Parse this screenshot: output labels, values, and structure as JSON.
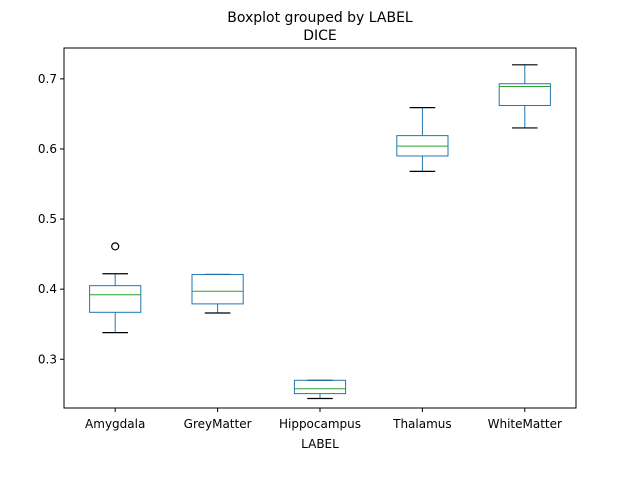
{
  "chart_data": {
    "type": "box",
    "title": "Boxplot grouped by LABEL",
    "subtitle": "DICE",
    "xlabel": "LABEL",
    "ylabel": "",
    "categories": [
      "Amygdala",
      "GreyMatter",
      "Hippocampus",
      "Thalamus",
      "WhiteMatter"
    ],
    "boxes": [
      {
        "category": "Amygdala",
        "whisker_low": 0.338,
        "q1": 0.367,
        "median": 0.392,
        "q3": 0.405,
        "whisker_high": 0.422,
        "outliers": [
          0.461
        ]
      },
      {
        "category": "GreyMatter",
        "whisker_low": 0.366,
        "q1": 0.379,
        "median": 0.397,
        "q3": 0.421,
        "whisker_high": 0.421,
        "outliers": []
      },
      {
        "category": "Hippocampus",
        "whisker_low": 0.244,
        "q1": 0.251,
        "median": 0.258,
        "q3": 0.27,
        "whisker_high": 0.27,
        "outliers": []
      },
      {
        "category": "Thalamus",
        "whisker_low": 0.568,
        "q1": 0.59,
        "median": 0.604,
        "q3": 0.619,
        "whisker_high": 0.659,
        "outliers": []
      },
      {
        "category": "WhiteMatter",
        "whisker_low": 0.63,
        "q1": 0.662,
        "median": 0.689,
        "q3": 0.693,
        "whisker_high": 0.72,
        "outliers": []
      }
    ],
    "yticks": [
      0.3,
      0.4,
      0.5,
      0.6,
      0.7
    ],
    "ylim": [
      0.2305,
      0.744
    ],
    "grid": false,
    "colors": {
      "box": "#1f77b4",
      "median": "#2ca02c",
      "whisker_cap": "#000000",
      "outlier": "#000000"
    }
  }
}
